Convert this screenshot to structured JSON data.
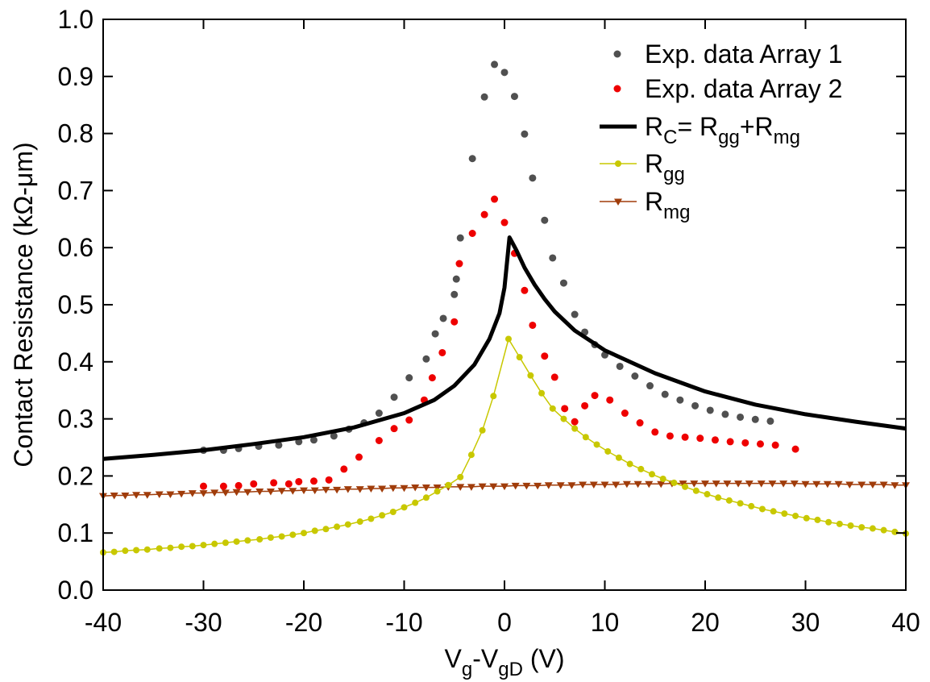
{
  "chart_data": {
    "type": "scatter",
    "xlabel": {
      "main": "V",
      "sub1": "g",
      "mid": "-V",
      "sub2": "gD",
      "tail": " (V)"
    },
    "ylabel": "Contact Resistance (kΩ-μm)",
    "xlim": [
      -40,
      40
    ],
    "ylim": [
      0.0,
      1.0
    ],
    "xticks": [
      -40,
      -30,
      -20,
      -10,
      0,
      10,
      20,
      30,
      40
    ],
    "xtick_labels": [
      "-40",
      "-30",
      "-20",
      "-10",
      "0",
      "10",
      "20",
      "30",
      "40"
    ],
    "yticks": [
      0.0,
      0.1,
      0.2,
      0.3,
      0.4,
      0.5,
      0.6,
      0.7,
      0.8,
      0.9,
      1.0
    ],
    "ytick_labels": [
      "0.0",
      "0.1",
      "0.2",
      "0.3",
      "0.4",
      "0.5",
      "0.6",
      "0.7",
      "0.8",
      "0.9",
      "1.0"
    ],
    "grid": false,
    "legend_position": "top-right",
    "legend": [
      {
        "id": "exp1",
        "parts": [
          {
            "t": "Exp. data Array 1"
          }
        ]
      },
      {
        "id": "exp2",
        "parts": [
          {
            "t": "Exp. data Array 2"
          }
        ]
      },
      {
        "id": "rc",
        "parts": [
          {
            "t": "R"
          },
          {
            "t": "C",
            "sub": true
          },
          {
            "t": "= R"
          },
          {
            "t": "gg",
            "sub": true
          },
          {
            "t": "+R"
          },
          {
            "t": "mg",
            "sub": true
          }
        ]
      },
      {
        "id": "rgg",
        "parts": [
          {
            "t": "R"
          },
          {
            "t": "gg",
            "sub": true
          }
        ]
      },
      {
        "id": "rmg",
        "parts": [
          {
            "t": "R"
          },
          {
            "t": "mg",
            "sub": true
          }
        ]
      }
    ],
    "series": [
      {
        "id": "exp1",
        "name": "Exp. data Array 1",
        "kind": "dots",
        "color": "#505050",
        "points": [
          [
            -30,
            0.245
          ],
          [
            -28,
            0.245
          ],
          [
            -26.5,
            0.248
          ],
          [
            -24.5,
            0.252
          ],
          [
            -22.5,
            0.254
          ],
          [
            -20.5,
            0.26
          ],
          [
            -19,
            0.263
          ],
          [
            -17,
            0.27
          ],
          [
            -15.5,
            0.282
          ],
          [
            -14,
            0.293
          ],
          [
            -12.5,
            0.31
          ],
          [
            -11,
            0.338
          ],
          [
            -9.5,
            0.372
          ],
          [
            -7.8,
            0.405
          ],
          [
            -6.9,
            0.449
          ],
          [
            -6.1,
            0.476
          ],
          [
            -5,
            0.518
          ],
          [
            -4.8,
            0.545
          ],
          [
            -4.4,
            0.617
          ],
          [
            -3.2,
            0.756
          ],
          [
            -2,
            0.864
          ],
          [
            -1,
            0.921
          ],
          [
            0,
            0.907
          ],
          [
            1,
            0.865
          ],
          [
            2,
            0.799
          ],
          [
            2.8,
            0.722
          ],
          [
            4,
            0.648
          ],
          [
            4.8,
            0.582
          ],
          [
            5.9,
            0.538
          ],
          [
            7,
            0.483
          ],
          [
            8,
            0.452
          ],
          [
            9,
            0.43
          ],
          [
            10,
            0.412
          ],
          [
            11.5,
            0.392
          ],
          [
            13,
            0.375
          ],
          [
            14.5,
            0.358
          ],
          [
            16,
            0.343
          ],
          [
            17.5,
            0.333
          ],
          [
            19,
            0.323
          ],
          [
            20.5,
            0.315
          ],
          [
            22,
            0.308
          ],
          [
            23.5,
            0.303
          ],
          [
            25,
            0.299
          ],
          [
            26.5,
            0.296
          ]
        ]
      },
      {
        "id": "exp2",
        "name": "Exp. data Array 2",
        "kind": "dots",
        "color": "#ee0000",
        "points": [
          [
            -30,
            0.182
          ],
          [
            -28,
            0.182
          ],
          [
            -26.5,
            0.183
          ],
          [
            -25,
            0.186
          ],
          [
            -23,
            0.188
          ],
          [
            -21.5,
            0.186
          ],
          [
            -20.5,
            0.19
          ],
          [
            -19,
            0.191
          ],
          [
            -17.5,
            0.193
          ],
          [
            -16,
            0.212
          ],
          [
            -14.5,
            0.233
          ],
          [
            -12.5,
            0.262
          ],
          [
            -11,
            0.283
          ],
          [
            -9.5,
            0.298
          ],
          [
            -8,
            0.333
          ],
          [
            -7.2,
            0.372
          ],
          [
            -6.2,
            0.416
          ],
          [
            -5,
            0.47
          ],
          [
            -4.5,
            0.572
          ],
          [
            -3.2,
            0.625
          ],
          [
            -2,
            0.658
          ],
          [
            -1,
            0.685
          ],
          [
            0,
            0.644
          ],
          [
            1,
            0.59
          ],
          [
            2,
            0.525
          ],
          [
            2.8,
            0.464
          ],
          [
            4,
            0.41
          ],
          [
            5,
            0.373
          ],
          [
            6,
            0.318
          ],
          [
            7,
            0.295
          ],
          [
            8,
            0.323
          ],
          [
            9,
            0.341
          ],
          [
            10.5,
            0.333
          ],
          [
            12,
            0.31
          ],
          [
            13.5,
            0.293
          ],
          [
            15,
            0.277
          ],
          [
            16.5,
            0.27
          ],
          [
            18,
            0.268
          ],
          [
            19.5,
            0.266
          ],
          [
            21,
            0.263
          ],
          [
            22.5,
            0.26
          ],
          [
            24,
            0.258
          ],
          [
            25.5,
            0.256
          ],
          [
            27,
            0.254
          ],
          [
            29,
            0.247
          ]
        ]
      },
      {
        "id": "rc",
        "name": "RC= Rgg+Rmg",
        "kind": "line",
        "color": "#000000",
        "points": [
          [
            -40,
            0.23
          ],
          [
            -35,
            0.237
          ],
          [
            -30,
            0.245
          ],
          [
            -25,
            0.256
          ],
          [
            -20,
            0.268
          ],
          [
            -15,
            0.285
          ],
          [
            -10,
            0.31
          ],
          [
            -7,
            0.333
          ],
          [
            -5,
            0.358
          ],
          [
            -3,
            0.395
          ],
          [
            -1.5,
            0.44
          ],
          [
            -0.5,
            0.485
          ],
          [
            0,
            0.53
          ],
          [
            0.5,
            0.618
          ],
          [
            1.2,
            0.595
          ],
          [
            2,
            0.565
          ],
          [
            3,
            0.535
          ],
          [
            4,
            0.51
          ],
          [
            5,
            0.488
          ],
          [
            7,
            0.455
          ],
          [
            10,
            0.42
          ],
          [
            15,
            0.38
          ],
          [
            20,
            0.348
          ],
          [
            25,
            0.325
          ],
          [
            30,
            0.308
          ],
          [
            35,
            0.295
          ],
          [
            40,
            0.283
          ]
        ]
      },
      {
        "id": "rgg",
        "name": "Rgg",
        "kind": "line-markers",
        "color": "#c8c800",
        "marker": "circle",
        "points": [
          [
            -40,
            0.066
          ],
          [
            -38.9,
            0.067
          ],
          [
            -37.8,
            0.069
          ],
          [
            -36.7,
            0.07
          ],
          [
            -35.6,
            0.071
          ],
          [
            -34.4,
            0.073
          ],
          [
            -33.3,
            0.074
          ],
          [
            -32.2,
            0.076
          ],
          [
            -31.1,
            0.077
          ],
          [
            -30,
            0.079
          ],
          [
            -28.9,
            0.081
          ],
          [
            -27.8,
            0.083
          ],
          [
            -26.7,
            0.085
          ],
          [
            -25.6,
            0.087
          ],
          [
            -24.4,
            0.089
          ],
          [
            -23.3,
            0.092
          ],
          [
            -22.2,
            0.094
          ],
          [
            -21.1,
            0.097
          ],
          [
            -20,
            0.1
          ],
          [
            -18.9,
            0.104
          ],
          [
            -17.8,
            0.107
          ],
          [
            -16.7,
            0.111
          ],
          [
            -15.6,
            0.115
          ],
          [
            -14.4,
            0.12
          ],
          [
            -13.3,
            0.125
          ],
          [
            -12.2,
            0.131
          ],
          [
            -11.1,
            0.137
          ],
          [
            -10,
            0.145
          ],
          [
            -8.9,
            0.153
          ],
          [
            -7.8,
            0.162
          ],
          [
            -6.7,
            0.173
          ],
          [
            -5.6,
            0.184
          ],
          [
            -4.4,
            0.198
          ],
          [
            -3.3,
            0.237
          ],
          [
            -2.2,
            0.28
          ],
          [
            -1.1,
            0.34
          ],
          [
            0.4,
            0.44
          ],
          [
            1.5,
            0.408
          ],
          [
            2.6,
            0.376
          ],
          [
            3.7,
            0.345
          ],
          [
            4.8,
            0.318
          ],
          [
            5.9,
            0.3
          ],
          [
            7,
            0.283
          ],
          [
            8.1,
            0.268
          ],
          [
            9.2,
            0.255
          ],
          [
            10.3,
            0.243
          ],
          [
            11.4,
            0.232
          ],
          [
            12.5,
            0.221
          ],
          [
            13.6,
            0.212
          ],
          [
            14.7,
            0.203
          ],
          [
            15.8,
            0.195
          ],
          [
            16.9,
            0.188
          ],
          [
            18,
            0.181
          ],
          [
            19.1,
            0.174
          ],
          [
            20.2,
            0.168
          ],
          [
            21.3,
            0.162
          ],
          [
            22.4,
            0.157
          ],
          [
            23.5,
            0.152
          ],
          [
            24.6,
            0.147
          ],
          [
            25.7,
            0.142
          ],
          [
            26.8,
            0.138
          ],
          [
            27.9,
            0.134
          ],
          [
            29,
            0.13
          ],
          [
            30.1,
            0.126
          ],
          [
            31.2,
            0.123
          ],
          [
            32.3,
            0.119
          ],
          [
            33.4,
            0.116
          ],
          [
            34.5,
            0.113
          ],
          [
            35.6,
            0.11
          ],
          [
            36.7,
            0.108
          ],
          [
            37.8,
            0.105
          ],
          [
            38.9,
            0.102
          ],
          [
            40,
            0.099
          ]
        ]
      },
      {
        "id": "rmg",
        "name": "Rmg",
        "kind": "line-markers",
        "color": "#a03c0a",
        "marker": "triangle-down",
        "points": [
          [
            -40,
            0.165
          ],
          [
            -38.9,
            0.166
          ],
          [
            -37.8,
            0.166
          ],
          [
            -36.7,
            0.167
          ],
          [
            -35.6,
            0.167
          ],
          [
            -34.4,
            0.168
          ],
          [
            -33.3,
            0.168
          ],
          [
            -32.2,
            0.169
          ],
          [
            -31.1,
            0.17
          ],
          [
            -30,
            0.17
          ],
          [
            -28.9,
            0.171
          ],
          [
            -27.8,
            0.171
          ],
          [
            -26.7,
            0.172
          ],
          [
            -25.6,
            0.172
          ],
          [
            -24.4,
            0.173
          ],
          [
            -23.3,
            0.173
          ],
          [
            -22.2,
            0.174
          ],
          [
            -21.1,
            0.174
          ],
          [
            -20,
            0.175
          ],
          [
            -18.9,
            0.175
          ],
          [
            -17.8,
            0.176
          ],
          [
            -16.7,
            0.176
          ],
          [
            -15.6,
            0.177
          ],
          [
            -14.4,
            0.177
          ],
          [
            -13.3,
            0.178
          ],
          [
            -12.2,
            0.178
          ],
          [
            -11.1,
            0.179
          ],
          [
            -10,
            0.179
          ],
          [
            -8.9,
            0.18
          ],
          [
            -7.8,
            0.18
          ],
          [
            -6.7,
            0.18
          ],
          [
            -5.6,
            0.181
          ],
          [
            -4.4,
            0.181
          ],
          [
            -3.3,
            0.181
          ],
          [
            -2.2,
            0.182
          ],
          [
            -1.1,
            0.182
          ],
          [
            0,
            0.182
          ],
          [
            1.1,
            0.183
          ],
          [
            2.2,
            0.183
          ],
          [
            3.3,
            0.183
          ],
          [
            4.4,
            0.184
          ],
          [
            5.6,
            0.184
          ],
          [
            6.7,
            0.184
          ],
          [
            7.8,
            0.185
          ],
          [
            8.9,
            0.185
          ],
          [
            10,
            0.185
          ],
          [
            11.1,
            0.185
          ],
          [
            12.2,
            0.186
          ],
          [
            13.3,
            0.186
          ],
          [
            14.4,
            0.186
          ],
          [
            15.6,
            0.186
          ],
          [
            16.7,
            0.187
          ],
          [
            17.8,
            0.187
          ],
          [
            18.9,
            0.187
          ],
          [
            20,
            0.187
          ],
          [
            21.1,
            0.187
          ],
          [
            22.2,
            0.187
          ],
          [
            23.3,
            0.187
          ],
          [
            24.4,
            0.187
          ],
          [
            25.6,
            0.187
          ],
          [
            26.7,
            0.187
          ],
          [
            27.8,
            0.187
          ],
          [
            28.9,
            0.187
          ],
          [
            30,
            0.186
          ],
          [
            31.1,
            0.186
          ],
          [
            32.2,
            0.186
          ],
          [
            33.3,
            0.186
          ],
          [
            34.4,
            0.185
          ],
          [
            35.6,
            0.185
          ],
          [
            36.7,
            0.185
          ],
          [
            37.8,
            0.185
          ],
          [
            38.9,
            0.184
          ],
          [
            40,
            0.184
          ]
        ]
      }
    ]
  }
}
